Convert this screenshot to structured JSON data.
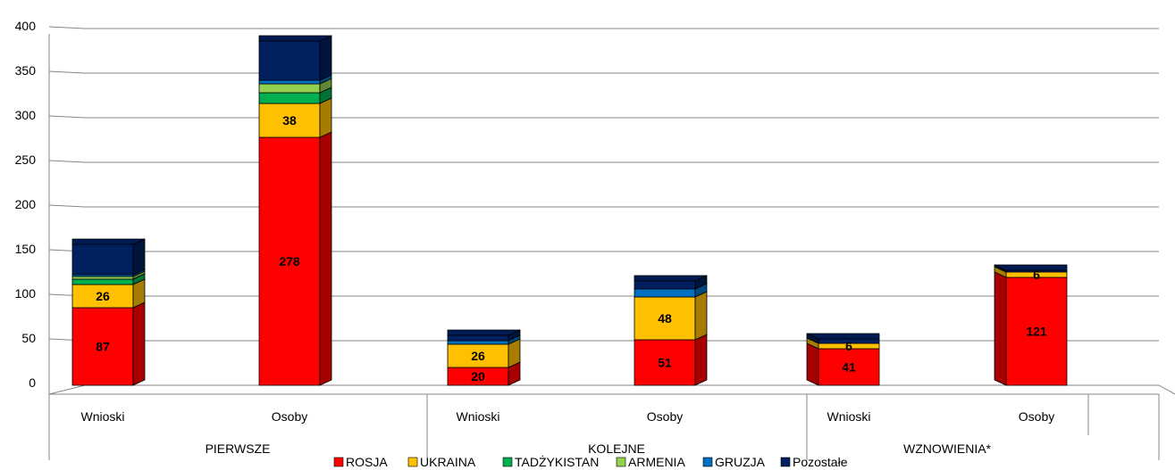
{
  "chart_data": {
    "type": "bar",
    "stacked": true,
    "three_d": true,
    "groups": [
      "PIERWSZE",
      "KOLEJNE",
      "WZNOWIENIA*"
    ],
    "categories": [
      "Wnioski",
      "Osoby",
      "Wnioski",
      "Osoby",
      "Wnioski",
      "Osoby"
    ],
    "series": [
      {
        "name": "ROSJA",
        "color": "#FF0000",
        "values": [
          87,
          278,
          20,
          51,
          41,
          121
        ]
      },
      {
        "name": "UKRAINA",
        "color": "#FFC000",
        "values": [
          26,
          38,
          26,
          48,
          6,
          6
        ]
      },
      {
        "name": "TADŻYKISTAN",
        "color": "#00B050",
        "values": [
          6,
          12,
          0,
          0,
          0,
          0
        ]
      },
      {
        "name": "ARMENIA",
        "color": "#92D050",
        "values": [
          3,
          10,
          0,
          0,
          0,
          0
        ]
      },
      {
        "name": "GRUZJA",
        "color": "#0070C0",
        "values": [
          2,
          4,
          4,
          9,
          0,
          0
        ]
      },
      {
        "name": "Pozostałe",
        "color": "#002060",
        "values": [
          34,
          44,
          6,
          9,
          5,
          2
        ]
      }
    ],
    "data_labels": [
      [
        "87",
        "278",
        "20",
        "51",
        "41",
        "121"
      ],
      [
        "26",
        "38",
        "26",
        "48",
        "6",
        "6"
      ],
      [
        "",
        "",
        "",
        "",
        "",
        ""
      ],
      [
        "",
        "",
        "",
        "",
        "",
        ""
      ],
      [
        "",
        "",
        "",
        "",
        "",
        ""
      ],
      [
        "",
        "",
        "",
        "",
        "",
        ""
      ]
    ],
    "y_ticks": [
      0,
      50,
      100,
      150,
      200,
      250,
      300,
      350,
      400
    ],
    "ylim": [
      0,
      400
    ],
    "grid": true,
    "legend_position": "bottom"
  }
}
